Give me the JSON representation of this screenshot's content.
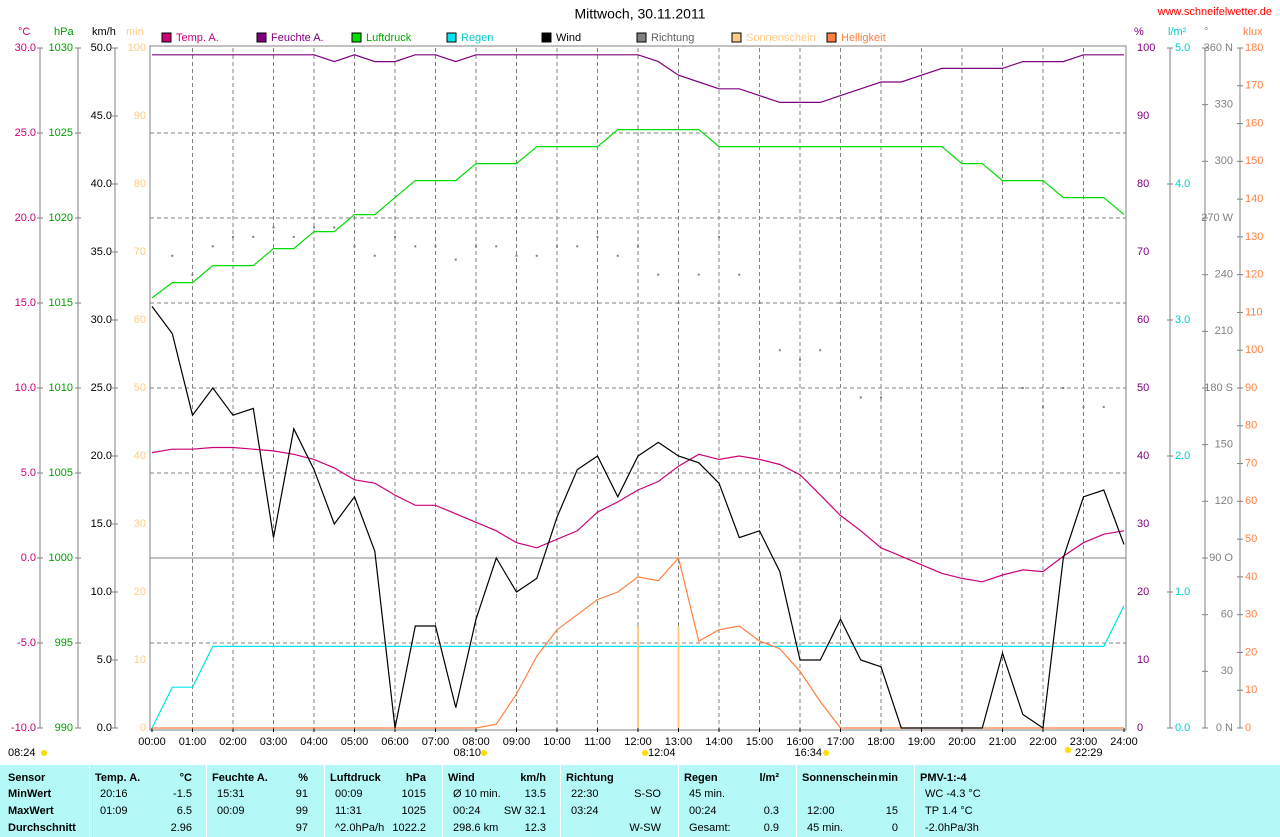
{
  "chart_data": {
    "type": "line",
    "title": "Mittwoch, 30.11.2011",
    "source": "www.schneifelwetter.de",
    "grid": true,
    "xlim": [
      0,
      24
    ],
    "xticks": [
      {
        "value": 0,
        "label": "00:00"
      },
      {
        "value": 1,
        "label": "01:00"
      },
      {
        "value": 2,
        "label": "02:00"
      },
      {
        "value": 3,
        "label": "03:00"
      },
      {
        "value": 4,
        "label": "04:00"
      },
      {
        "value": 5,
        "label": "05:00"
      },
      {
        "value": 6,
        "label": "06:00"
      },
      {
        "value": 7,
        "label": "07:00"
      },
      {
        "value": 8,
        "label": "08:00"
      },
      {
        "value": 9,
        "label": "09:00"
      },
      {
        "value": 10,
        "label": "10:00"
      },
      {
        "value": 11,
        "label": "11:00"
      },
      {
        "value": 12,
        "label": "12:00"
      },
      {
        "value": 13,
        "label": "13:00"
      },
      {
        "value": 14,
        "label": "14:00"
      },
      {
        "value": 15,
        "label": "15:00"
      },
      {
        "value": 16,
        "label": "16:00"
      },
      {
        "value": 17,
        "label": "17:00"
      },
      {
        "value": 18,
        "label": "18:00"
      },
      {
        "value": 19,
        "label": "19:00"
      },
      {
        "value": 20,
        "label": "20:00"
      },
      {
        "value": 21,
        "label": "21:00"
      },
      {
        "value": 22,
        "label": "22:00"
      },
      {
        "value": 23,
        "label": "23:00"
      },
      {
        "value": 24,
        "label": "24:00"
      }
    ],
    "x": [
      0,
      0.5,
      1,
      1.5,
      2,
      2.5,
      3,
      3.5,
      4,
      4.5,
      5,
      5.5,
      6,
      6.5,
      7,
      7.5,
      8,
      8.5,
      9,
      9.5,
      10,
      10.5,
      11,
      11.5,
      12,
      12.5,
      13,
      13.5,
      14,
      14.5,
      15,
      15.5,
      16,
      16.5,
      17,
      17.5,
      18,
      18.5,
      19,
      19.5,
      20,
      20.5,
      21,
      21.5,
      22,
      22.5,
      23,
      23.5,
      24
    ],
    "axes": [
      {
        "id": "temp",
        "label": "°C",
        "color": "#cc0077",
        "grid": true,
        "lim": [
          -10,
          30
        ],
        "ticks": [
          {
            "value": -10,
            "label": "-10.0"
          },
          {
            "value": -5,
            "label": "-5.0"
          },
          {
            "value": 0,
            "label": "0.0"
          },
          {
            "value": 5,
            "label": "5.0"
          },
          {
            "value": 10,
            "label": "10.0"
          },
          {
            "value": 15,
            "label": "15.0"
          },
          {
            "value": 20,
            "label": "20.0"
          },
          {
            "value": 25,
            "label": "25.0"
          },
          {
            "value": 30,
            "label": "30.0"
          }
        ]
      },
      {
        "id": "hpa",
        "label": "hPa",
        "color": "#00a000",
        "lim": [
          990,
          1030
        ],
        "ticks": [
          990,
          995,
          1000,
          1005,
          1010,
          1015,
          1020,
          1025,
          1030
        ]
      },
      {
        "id": "kmh",
        "label": "km/h",
        "color": "#000000",
        "lim": [
          0,
          50
        ],
        "ticks": [
          {
            "value": 0,
            "label": "0.0"
          },
          {
            "value": 5,
            "label": "5.0"
          },
          {
            "value": 10,
            "label": "10.0"
          },
          {
            "value": 15,
            "label": "15.0"
          },
          {
            "value": 20,
            "label": "20.0"
          },
          {
            "value": 25,
            "label": "25.0"
          },
          {
            "value": 30,
            "label": "30.0"
          },
          {
            "value": 35,
            "label": "35.0"
          },
          {
            "value": 40,
            "label": "40.0"
          },
          {
            "value": 45,
            "label": "45.0"
          },
          {
            "value": 50,
            "label": "50.0"
          }
        ]
      },
      {
        "id": "min",
        "label": "min",
        "color": "#ffcc88",
        "lim": [
          0,
          100
        ],
        "ticks": [
          0,
          10,
          20,
          30,
          40,
          50,
          60,
          70,
          80,
          90,
          100
        ]
      },
      {
        "id": "pct",
        "label": "%",
        "color": "#800080",
        "lim": [
          0,
          100
        ],
        "ticks": [
          0,
          10,
          20,
          30,
          40,
          50,
          60,
          70,
          80,
          90,
          100
        ]
      },
      {
        "id": "rain",
        "label": "l/m²",
        "color": "#00cccc",
        "lim": [
          0,
          5
        ],
        "ticks": [
          {
            "value": 0,
            "label": "0.0"
          },
          {
            "value": 1,
            "label": "1.0"
          },
          {
            "value": 2,
            "label": "2.0"
          },
          {
            "value": 3,
            "label": "3.0"
          },
          {
            "value": 4,
            "label": "4.0"
          },
          {
            "value": 5,
            "label": "5.0"
          }
        ]
      },
      {
        "id": "deg",
        "label": "°",
        "color": "#808080",
        "lim": [
          0,
          360
        ],
        "ticks": [
          {
            "value": 0,
            "label": "0 N"
          },
          30,
          60,
          {
            "value": 90,
            "label": "90 O"
          },
          120,
          150,
          {
            "value": 180,
            "label": "180 S"
          },
          210,
          240,
          {
            "value": 270,
            "label": "270 W"
          },
          300,
          330,
          {
            "value": 360,
            "label": "360 N"
          }
        ]
      },
      {
        "id": "klux",
        "label": "klux",
        "color": "#ff8040",
        "lim": [
          0,
          180
        ],
        "ticks": [
          0,
          10,
          20,
          30,
          40,
          50,
          60,
          70,
          80,
          90,
          100,
          110,
          120,
          130,
          140,
          150,
          160,
          170,
          180
        ]
      }
    ],
    "series": [
      {
        "name": "Temp. A.",
        "color": "#cc0077",
        "axis": "temp",
        "values": [
          6.2,
          6.4,
          6.4,
          6.5,
          6.5,
          6.4,
          6.3,
          6.1,
          5.8,
          5.3,
          4.6,
          4.4,
          3.7,
          3.1,
          3.1,
          2.6,
          2.1,
          1.6,
          0.9,
          0.6,
          1.1,
          1.6,
          2.7,
          3.3,
          4.0,
          4.5,
          5.4,
          6.1,
          5.8,
          6.0,
          5.8,
          5.5,
          4.9,
          3.7,
          2.5,
          1.6,
          0.6,
          0.1,
          -0.4,
          -0.9,
          -1.2,
          -1.4,
          -1.0,
          -0.7,
          -0.8,
          0.1,
          0.9,
          1.4,
          1.6
        ]
      },
      {
        "name": "Feuchte A.",
        "color": "#800080",
        "axis": "pct",
        "values": [
          99,
          99,
          99,
          99,
          99,
          99,
          99,
          99,
          99,
          98,
          99,
          98,
          98,
          99,
          99,
          98,
          99,
          99,
          99,
          99,
          99,
          99,
          99,
          99,
          99,
          98,
          96,
          95,
          94,
          94,
          93,
          92,
          92,
          92,
          93,
          94,
          95,
          95,
          96,
          97,
          97,
          97,
          97,
          98,
          98,
          98,
          99,
          99,
          99
        ]
      },
      {
        "name": "Luftdruck",
        "color": "#00dd00",
        "axis": "hpa",
        "values": [
          1015.3,
          1016.2,
          1016.2,
          1017.2,
          1017.2,
          1017.2,
          1018.2,
          1018.2,
          1019.2,
          1019.2,
          1020.2,
          1020.2,
          1021.2,
          1022.2,
          1022.2,
          1022.2,
          1023.2,
          1023.2,
          1023.2,
          1024.2,
          1024.2,
          1024.2,
          1024.2,
          1025.2,
          1025.2,
          1025.2,
          1025.2,
          1025.2,
          1024.2,
          1024.2,
          1024.2,
          1024.2,
          1024.2,
          1024.2,
          1024.2,
          1024.2,
          1024.2,
          1024.2,
          1024.2,
          1024.2,
          1023.2,
          1023.2,
          1022.2,
          1022.2,
          1022.2,
          1021.2,
          1021.2,
          1021.2,
          1020.2
        ]
      },
      {
        "name": "Regen",
        "color": "#00e5ee",
        "axis": "rain",
        "values": [
          0,
          0.3,
          0.3,
          0.6,
          0.6,
          0.6,
          0.6,
          0.6,
          0.6,
          0.6,
          0.6,
          0.6,
          0.6,
          0.6,
          0.6,
          0.6,
          0.6,
          0.6,
          0.6,
          0.6,
          0.6,
          0.6,
          0.6,
          0.6,
          0.6,
          0.6,
          0.6,
          0.6,
          0.6,
          0.6,
          0.6,
          0.6,
          0.6,
          0.6,
          0.6,
          0.6,
          0.6,
          0.6,
          0.6,
          0.6,
          0.6,
          0.6,
          0.6,
          0.6,
          0.6,
          0.6,
          0.6,
          0.6,
          0.9
        ]
      },
      {
        "name": "Wind",
        "color": "#000000",
        "axis": "kmh",
        "values": [
          31,
          29,
          23,
          25,
          23,
          23.5,
          14,
          22,
          19,
          15,
          17,
          13,
          0,
          7.5,
          7.5,
          1.5,
          8,
          12.5,
          10,
          11,
          15.5,
          19,
          20,
          17,
          20,
          21,
          20,
          19.5,
          18,
          14,
          14.5,
          11.5,
          5,
          5,
          8,
          5,
          4.5,
          0,
          0,
          0,
          0,
          0,
          5.5,
          1,
          0,
          12.5,
          17,
          17.5,
          13.5
        ]
      },
      {
        "name": "Richtung",
        "color": "#808080",
        "axis": "deg",
        "style": "dots",
        "values": [
          null,
          250,
          240,
          255,
          260,
          260,
          265,
          260,
          265,
          265,
          255,
          250,
          260,
          255,
          255,
          248,
          255,
          255,
          250,
          250,
          255,
          255,
          260,
          250,
          255,
          240,
          225,
          240,
          260,
          240,
          225,
          200,
          195,
          200,
          225,
          175,
          175,
          null,
          null,
          null,
          null,
          null,
          180,
          180,
          170,
          180,
          170,
          170,
          null
        ]
      },
      {
        "name": "Sonnenschein",
        "color": "#ffcc88",
        "axis": "min",
        "style": "bars",
        "values": [
          0,
          0,
          0,
          0,
          0,
          0,
          0,
          0,
          0,
          0,
          0,
          0,
          0,
          0,
          0,
          0,
          0,
          0,
          0,
          0,
          0,
          0,
          0,
          0,
          15,
          0,
          15,
          0,
          0,
          0,
          0,
          0,
          0,
          0,
          0,
          0,
          0,
          0,
          0,
          0,
          0,
          0,
          0,
          0,
          0,
          0,
          0,
          0,
          0
        ]
      },
      {
        "name": "Helligkeit",
        "color": "#ff8040",
        "axis": "klux",
        "values": [
          0,
          0,
          0,
          0,
          0,
          0,
          0,
          0,
          0,
          0,
          0,
          0,
          0,
          0,
          0,
          0,
          0,
          1,
          9,
          19,
          26,
          30,
          34,
          36,
          40,
          39,
          45,
          23,
          26,
          27,
          23,
          21,
          15,
          7,
          0,
          0,
          0,
          0,
          0,
          0,
          0,
          0,
          0,
          0,
          0,
          0,
          0,
          0,
          0
        ]
      }
    ],
    "annotations": [
      "08:24",
      "08:10",
      "12:04",
      "16:34",
      "22:29"
    ]
  },
  "stats": {
    "row_labels": [
      "Sensor",
      "MinWert",
      "MaxWert",
      "Durchschnitt"
    ],
    "columns": [
      {
        "title": "Temp. A.",
        "unit": "°C",
        "cells": [
          {
            "left": "20:16",
            "right": "-1.5"
          },
          {
            "left": "01:09",
            "right": "6.5"
          },
          {
            "right": "2.96"
          }
        ]
      },
      {
        "title": "Feuchte A.",
        "unit": "%",
        "cells": [
          {
            "left": "15:31",
            "right": "91"
          },
          {
            "left": "00:09",
            "right": "99"
          },
          {
            "right": "97"
          }
        ]
      },
      {
        "title": "Luftdruck",
        "unit": "hPa",
        "cells": [
          {
            "left": "00:09",
            "right": "1015"
          },
          {
            "left": "11:31",
            "right": "1025"
          },
          {
            "left": "^2.0hPa/h",
            "right": "1022.2"
          }
        ]
      },
      {
        "title": "Wind",
        "unit": "km/h",
        "cells": [
          {
            "left": "Ø 10 min.",
            "right": "13.5"
          },
          {
            "left": "00:24",
            "right": "SW 32.1"
          },
          {
            "left": "298.6 km",
            "right": "12.3"
          }
        ]
      },
      {
        "title": "Richtung",
        "cells": [
          {
            "left": "22:30",
            "right": "S-SO"
          },
          {
            "left": "03:24",
            "right": "W"
          },
          {
            "right": "W-SW"
          }
        ]
      },
      {
        "title": "Regen",
        "unit": "l/m²",
        "cells": [
          {
            "left": "45 min."
          },
          {
            "left": "00:24",
            "right": "0.3"
          },
          {
            "left": "Gesamt:",
            "right": "0.9"
          }
        ]
      },
      {
        "title": "Sonnenschein",
        "unit": "min",
        "cells": [
          null,
          {
            "left": "12:00",
            "right": "15"
          },
          {
            "left": "45 min.",
            "right": "0"
          }
        ]
      },
      {
        "title": "PMV-1:-4",
        "cells": [
          {
            "left": "WC -4.3 °C"
          },
          {
            "left": "TP 1.4 °C"
          },
          {
            "left": "-2.0hPa/3h"
          }
        ]
      }
    ]
  }
}
